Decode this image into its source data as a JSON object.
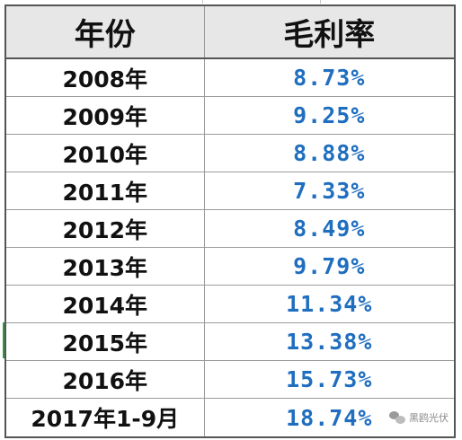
{
  "table": {
    "headers": {
      "year": "年份",
      "margin": "毛利率"
    },
    "rows": [
      {
        "year": "2008年",
        "margin": "8.73%"
      },
      {
        "year": "2009年",
        "margin": "9.25%"
      },
      {
        "year": "2010年",
        "margin": "8.88%"
      },
      {
        "year": "2011年",
        "margin": "7.33%"
      },
      {
        "year": "2012年",
        "margin": "8.49%"
      },
      {
        "year": "2013年",
        "margin": "9.79%"
      },
      {
        "year": "2014年",
        "margin": "11.34%"
      },
      {
        "year": "2015年",
        "margin": "13.38%"
      },
      {
        "year": "2016年",
        "margin": "15.73%"
      },
      {
        "year": "2017年1-9月",
        "margin": "18.74%"
      }
    ]
  },
  "watermark": {
    "icon": "wechat-icon",
    "text": "黑鸥光伏"
  },
  "colors": {
    "header_bg": "#e7e7e7",
    "value_text": "#1f6ebf",
    "row_marker": "#2e9a3a"
  }
}
